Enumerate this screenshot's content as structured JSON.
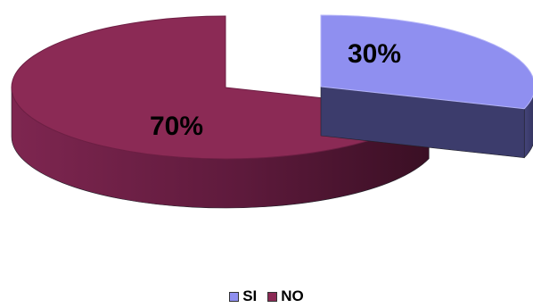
{
  "chart_data": {
    "type": "pie",
    "style": "3d-exploded",
    "categories": [
      "SI",
      "NO"
    ],
    "values": [
      30,
      70
    ],
    "data_labels": [
      "30%",
      "70%"
    ],
    "colors": {
      "SI": "#8f8ff0",
      "NO": "#8b2a55"
    },
    "side_colors": {
      "SI": "#3a3a68",
      "NO": "#5a1a38"
    },
    "legend_position": "bottom"
  }
}
